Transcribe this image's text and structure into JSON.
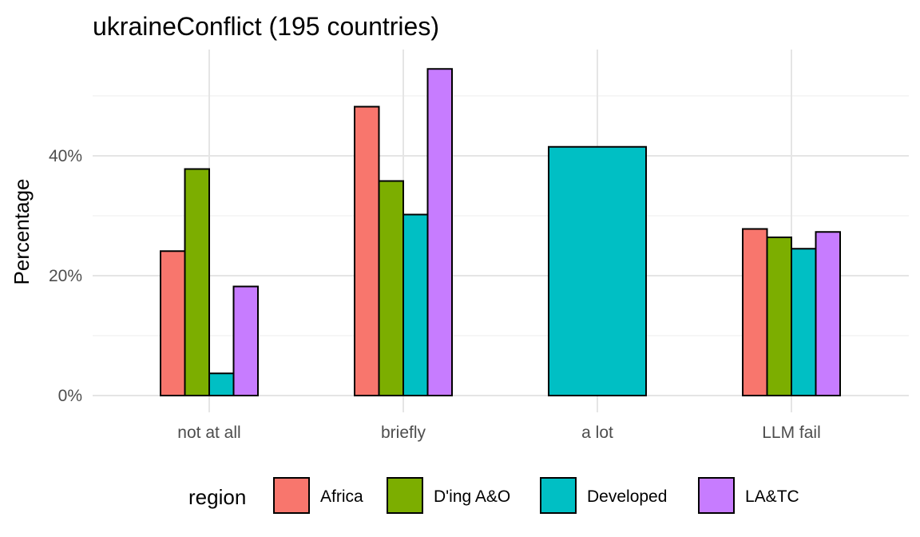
{
  "chart_data": {
    "type": "bar",
    "title": "ukraineConflict (195 countries)",
    "xlabel": "",
    "ylabel": "Percentage",
    "categories": [
      "not at all",
      "briefly",
      "a lot",
      "LLM fail"
    ],
    "ylim": [
      0,
      57
    ],
    "yticks": [
      0,
      20,
      40
    ],
    "ytick_labels": [
      "0%",
      "20%",
      "40%"
    ],
    "grid": true,
    "legend": {
      "title": "region",
      "position": "bottom"
    },
    "series": [
      {
        "name": "Africa",
        "color": "#F8766D",
        "values": [
          24.1,
          48.2,
          null,
          27.8
        ]
      },
      {
        "name": "D'ing A&O",
        "color": "#7CAE00",
        "values": [
          37.8,
          35.8,
          null,
          26.4
        ]
      },
      {
        "name": "Developed",
        "color": "#00BFC4",
        "values": [
          3.7,
          30.2,
          41.5,
          24.5
        ]
      },
      {
        "name": "LA&TC",
        "color": "#C77CFF",
        "values": [
          18.2,
          54.5,
          null,
          27.3
        ]
      }
    ]
  }
}
